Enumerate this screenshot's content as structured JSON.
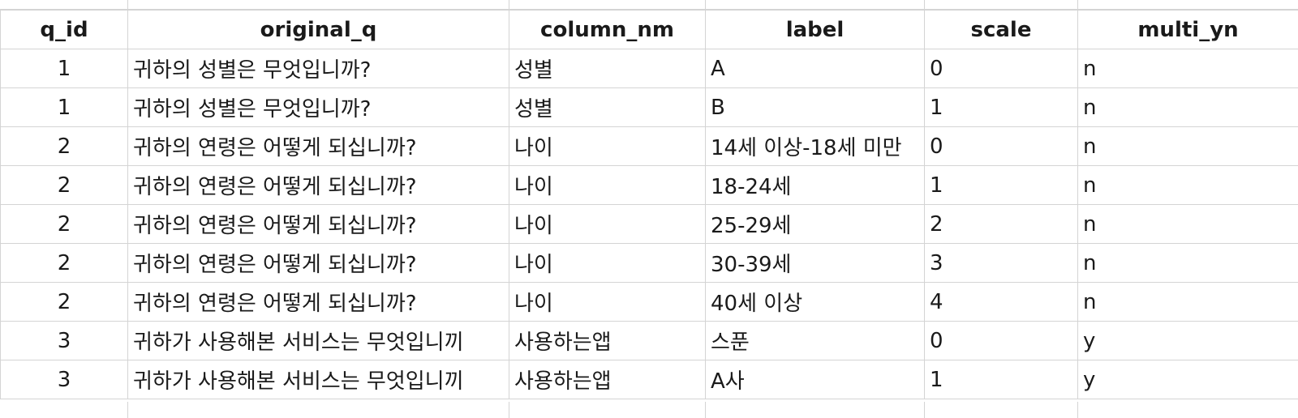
{
  "sheet": {
    "columns": [
      "q_id",
      "original_q",
      "column_nm",
      "label",
      "scale",
      "multi_yn"
    ],
    "rows": [
      [
        "1",
        "귀하의 성별은 무엇입니까?",
        "성별",
        "A",
        "0",
        "n"
      ],
      [
        "1",
        "귀하의 성별은 무엇입니까?",
        "성별",
        "B",
        "1",
        "n"
      ],
      [
        "2",
        "귀하의 연령은 어떻게 되십니까?",
        "나이",
        "14세 이상-18세 미만",
        "0",
        "n"
      ],
      [
        "2",
        "귀하의 연령은 어떻게 되십니까?",
        "나이",
        "18-24세",
        "1",
        "n"
      ],
      [
        "2",
        "귀하의 연령은 어떻게 되십니까?",
        "나이",
        "25-29세",
        "2",
        "n"
      ],
      [
        "2",
        "귀하의 연령은 어떻게 되십니까?",
        "나이",
        "30-39세",
        "3",
        "n"
      ],
      [
        "2",
        "귀하의 연령은 어떻게 되십니까?",
        "나이",
        "40세 이상",
        "4",
        "n"
      ],
      [
        "3",
        "귀하가 사용해본 서비스는 무엇입니끼",
        "사용하는앱",
        "스푼",
        "0",
        "y"
      ],
      [
        "3",
        "귀하가 사용해본 서비스는 무엇입니끼",
        "사용하는앱",
        "A사",
        "1",
        "y"
      ]
    ]
  }
}
